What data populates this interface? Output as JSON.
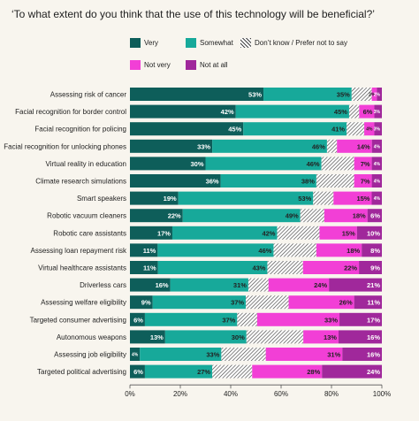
{
  "title": "‘To what extent do you think that the use of this technology will be beneficial?’",
  "chart_data": {
    "type": "bar",
    "orientation": "horizontal",
    "stacked": true,
    "categories": [
      "Assessing risk of cancer",
      "Facial recognition for border control",
      "Facial recognition for policing",
      "Facial recognition for unlocking phones",
      "Virtual reality in education",
      "Climate research simulations",
      "Smart speakers",
      "Robotic vacuum cleaners",
      "Robotic care assistants",
      "Assessing loan repayment risk",
      "Virtual healthcare assistants",
      "Driverless cars",
      "Assessing welfare eligibility",
      "Targeted consumer advertising",
      "Autonomous weapons",
      "Assessing job eligibility",
      "Targeted political advertising"
    ],
    "series": [
      {
        "name": "Very",
        "color": "#0e5e5a",
        "labels": [
          "53%",
          "42%",
          "45%",
          "33%",
          "30%",
          "36%",
          "19%",
          "22%",
          "17%",
          "11%",
          "11%",
          "16%",
          "9%",
          "6%",
          "13%",
          "4%",
          "6%"
        ],
        "values": [
          53,
          42,
          45,
          33,
          30,
          36,
          19,
          22,
          17,
          11,
          11,
          16,
          9,
          6,
          13,
          4,
          6
        ]
      },
      {
        "name": "Somewhat",
        "color": "#17a99a",
        "labels": [
          "35%",
          "45%",
          "41%",
          "46%",
          "46%",
          "38%",
          "53%",
          "49%",
          "42%",
          "46%",
          "43%",
          "31%",
          "37%",
          "37%",
          "30%",
          "33%",
          "27%"
        ],
        "values": [
          35,
          45,
          41,
          46,
          46,
          38,
          53,
          49,
          42,
          46,
          43,
          31,
          37,
          37,
          30,
          33,
          27
        ]
      },
      {
        "name": "Don’t know / Prefer not to say",
        "color": "hatch",
        "labels": [
          "",
          "",
          "",
          "",
          "",
          "",
          "",
          "",
          "",
          "",
          "",
          "",
          "",
          "",
          "",
          "",
          ""
        ],
        "values": [
          8,
          4,
          7,
          4,
          13,
          15,
          8,
          10,
          17,
          17,
          14,
          8,
          17,
          8,
          21,
          18,
          16
        ]
      },
      {
        "name": "Not very",
        "color": "#f23fd6",
        "labels": [
          "2%",
          "6%",
          "4%",
          "14%",
          "7%",
          "7%",
          "15%",
          "18%",
          "15%",
          "18%",
          "22%",
          "24%",
          "26%",
          "33%",
          "13%",
          "31%",
          "28%"
        ],
        "values": [
          2,
          6,
          4,
          14,
          7,
          7,
          15,
          18,
          15,
          18,
          22,
          24,
          26,
          33,
          13,
          31,
          28
        ]
      },
      {
        "name": "Not at all",
        "color": "#a0289b",
        "labels": [
          "2%",
          "3%",
          "3%",
          "4%",
          "4%",
          "4%",
          "4%",
          "6%",
          "10%",
          "8%",
          "9%",
          "21%",
          "11%",
          "17%",
          "16%",
          "16%",
          "24%"
        ],
        "values": [
          2,
          3,
          3,
          4,
          4,
          4,
          4,
          6,
          10,
          8,
          9,
          21,
          11,
          17,
          16,
          16,
          24
        ]
      }
    ],
    "xlim": [
      0,
      100
    ],
    "xticks": [
      "0%",
      "20%",
      "40%",
      "60%",
      "80%",
      "100%"
    ],
    "grid": false,
    "legend": "top-right"
  }
}
